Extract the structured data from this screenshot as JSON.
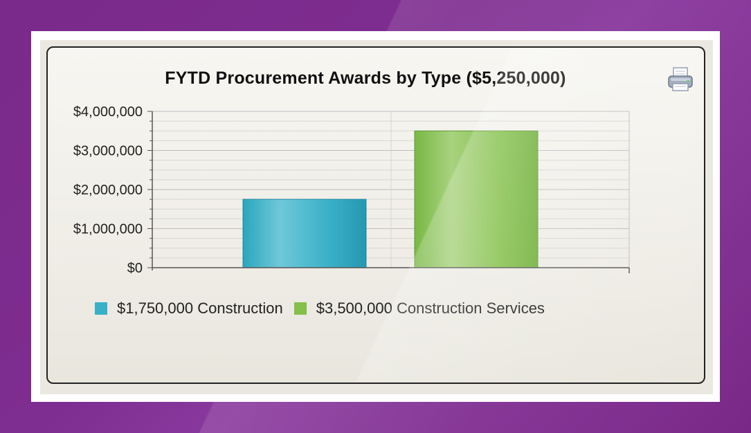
{
  "chart_data": {
    "type": "bar",
    "title": "FYTD Procurement Awards by Type ($5,250,000)",
    "xlabel": "",
    "ylabel": "",
    "categories": [
      "Construction",
      "Construction Services"
    ],
    "values": [
      1750000,
      3500000
    ],
    "ylim": [
      0,
      4000000
    ],
    "yticks": [
      "$0",
      "$1,000,000",
      "$2,000,000",
      "$3,000,000",
      "$4,000,000"
    ],
    "ytick_values": [
      0,
      1000000,
      2000000,
      3000000,
      4000000
    ],
    "grid": true,
    "legend_position": "bottom-left",
    "legend": [
      {
        "label": "$1,750,000 Construction",
        "color": "#3ab0c8"
      },
      {
        "label": "$3,500,000 Construction Services",
        "color": "#84c04a"
      }
    ]
  },
  "colors": {
    "background": "#7e2d90",
    "construction": "#3ab0c8",
    "construction_services": "#84c04a"
  },
  "toolbar": {
    "print_icon": "printer-icon"
  }
}
